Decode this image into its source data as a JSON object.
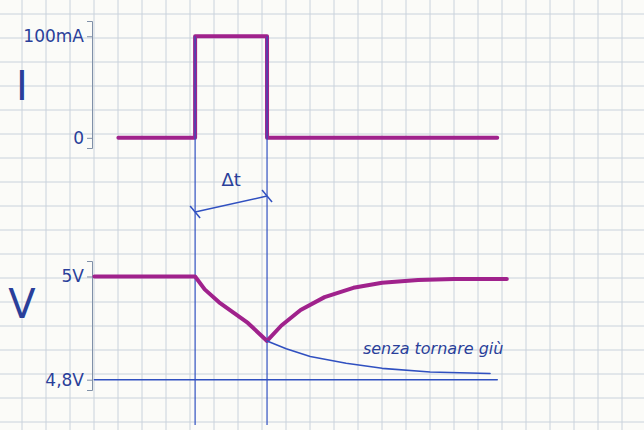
{
  "chart_data": [
    {
      "type": "line",
      "y_label": "I",
      "xlim": [
        -1.1,
        17
      ],
      "ylim": [
        -10,
        115
      ],
      "yticks": [
        0,
        {
          "value": 100,
          "label": "100mA"
        }
      ],
      "tick_labels": "y",
      "series": [
        {
          "color": "#a0228c",
          "x": [
            0,
            3.2,
            3.2,
            6.2,
            6.2,
            15.8
          ],
          "values": [
            0,
            0,
            100,
            100,
            0,
            0
          ]
        }
      ],
      "annotations": [
        {
          "text": "Δt",
          "x": [
            3.2,
            6.2
          ]
        }
      ]
    },
    {
      "type": "line",
      "y_label": "V",
      "xlim": [
        -1.1,
        17
      ],
      "ylim": [
        4.78,
        5.03
      ],
      "yticks": [
        {
          "value": 4.8,
          "label": "4,8V"
        },
        {
          "value": 5,
          "label": "5V"
        }
      ],
      "tick_labels": "y",
      "series": [
        {
          "color": "#a0228c",
          "x": [
            -1,
            3.2,
            3.6,
            4.2,
            4.8,
            5.4,
            6.2,
            6.8,
            7.6,
            8.6,
            9.8,
            11,
            12.5,
            14,
            16.2
          ],
          "values": [
            5,
            5,
            4.975,
            4.95,
            4.93,
            4.91,
            4.875,
            4.905,
            4.935,
            4.96,
            4.978,
            4.988,
            4.993,
            4.995,
            4.995
          ]
        },
        {
          "color": "#3050c0",
          "x": [
            6.2,
            7,
            8,
            9.5,
            11,
            13,
            15.5
          ],
          "values": [
            4.875,
            4.86,
            4.845,
            4.832,
            4.822,
            4.815,
            4.812
          ]
        },
        {
          "color": "#3050c0",
          "x": [
            -1,
            15.8
          ],
          "values": [
            4.8,
            4.8
          ]
        }
      ],
      "annotations": [
        {
          "text": "senza tornare giù",
          "x": 10.2,
          "y": 4.85
        }
      ]
    }
  ]
}
